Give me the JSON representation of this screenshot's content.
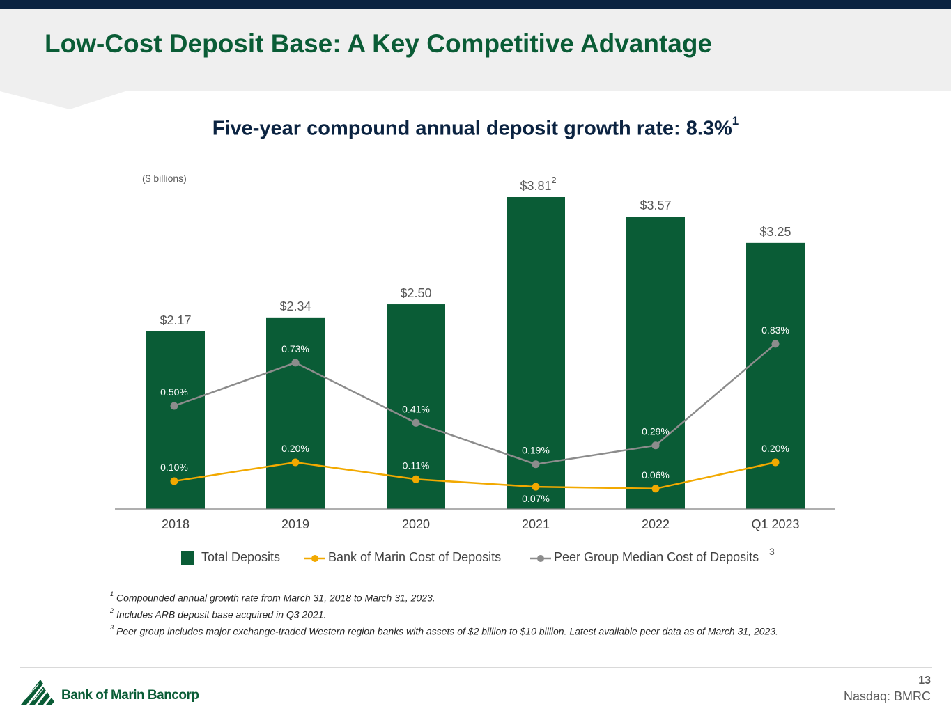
{
  "slide": {
    "title": "Low-Cost Deposit Base: A Key Competitive Advantage",
    "subtitle": "Five-year compound annual deposit growth rate: 8.3%",
    "subtitle_sup": "1",
    "units": "($ billions)",
    "page_number": "13",
    "ticker": "Nasdaq: BMRC",
    "logo_text": "Bank of Marin Bancorp"
  },
  "legend": {
    "total_deposits": "Total Deposits",
    "bank_cost": "Bank of Marin Cost of Deposits",
    "peer_cost": "Peer Group Median Cost of Deposits",
    "peer_sup": "3"
  },
  "footnotes": [
    {
      "num": "1",
      "text": "Compounded annual growth rate from March 31, 2018 to March 31, 2023."
    },
    {
      "num": "2",
      "text": "Includes ARB deposit base acquired in Q3 2021."
    },
    {
      "num": "3",
      "text": "Peer group includes major exchange-traded Western region banks with assets of $2 billion to $10 billion.  Latest available peer data as of March 31, 2023."
    }
  ],
  "colors": {
    "bar": "#0a5c36",
    "bank_line": "#f2a900",
    "peer_line": "#8c8c8c",
    "title": "#0a5c36",
    "navy": "#0b2341"
  },
  "chart_data": {
    "type": "bar",
    "categories": [
      "2018",
      "2019",
      "2020",
      "2021",
      "2022",
      "Q1 2023"
    ],
    "series": [
      {
        "name": "Total Deposits",
        "type": "bar",
        "values": [
          2.17,
          2.34,
          2.5,
          3.81,
          3.57,
          3.25
        ],
        "labels": [
          "$2.17",
          "$2.34",
          "$2.50",
          "$3.81",
          "$3.57",
          "$3.25"
        ]
      },
      {
        "name": "Bank of Marin Cost of Deposits",
        "type": "line",
        "values": [
          0.1,
          0.2,
          0.11,
          0.07,
          0.06,
          0.2
        ],
        "labels": [
          "0.10%",
          "0.20%",
          "0.11%",
          "0.07%",
          "0.06%",
          "0.20%"
        ]
      },
      {
        "name": "Peer Group Median Cost of Deposits",
        "type": "line",
        "values": [
          0.5,
          0.73,
          0.41,
          0.19,
          0.29,
          0.83
        ],
        "labels": [
          "0.50%",
          "0.73%",
          "0.41%",
          "0.19%",
          "0.29%",
          "0.83%"
        ]
      }
    ],
    "bar_label_sup": {
      "index": 3,
      "text": "2"
    },
    "legend_position": "bottom",
    "grid": false
  }
}
